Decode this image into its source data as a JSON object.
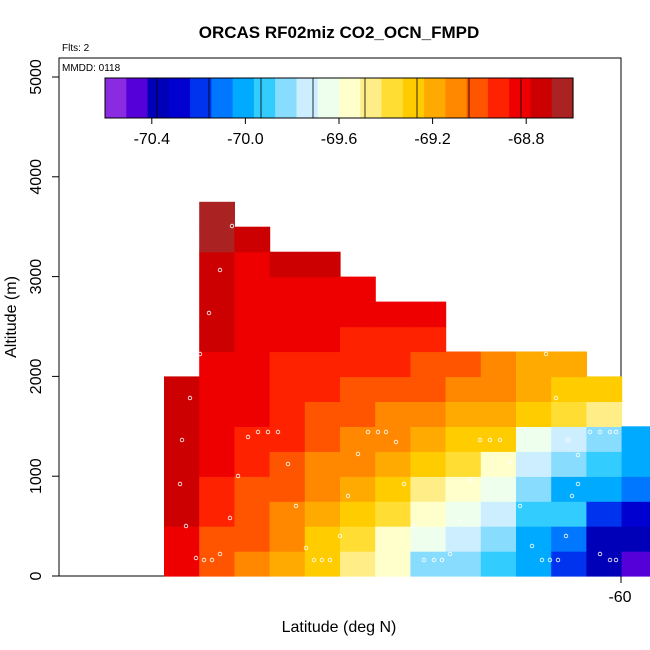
{
  "chart_data": {
    "type": "heatmap",
    "title": "ORCAS RF02miz CO2_OCN_FMPD",
    "annotations": {
      "flights": "Flts: 2",
      "date": "MMDD: 0118"
    },
    "xlabel": "Latitude (deg N)",
    "ylabel": "Altitude (m)",
    "x_ticks": [
      "-60"
    ],
    "y_ticks": [
      "0",
      "1000",
      "2000",
      "3000",
      "4000",
      "5000"
    ],
    "ylim": [
      0,
      5200
    ],
    "colorbar": {
      "range": [
        -70.6,
        -68.6
      ],
      "tick_values": [
        -70.4,
        -70.0,
        -69.6,
        -69.2,
        -68.8
      ],
      "tick_labels": [
        "-70.4",
        "-70.0",
        "-69.6",
        "-69.2",
        "-68.8"
      ],
      "colors": [
        "#8a2be2",
        "#5500d8",
        "#0000b8",
        "#0000d0",
        "#0033ee",
        "#0077ff",
        "#00aaff",
        "#33ccff",
        "#88ddff",
        "#cceeff",
        "#eeffee",
        "#ffffcc",
        "#ffee88",
        "#ffdd33",
        "#ffcc00",
        "#ffaa00",
        "#ff8800",
        "#ff5500",
        "#ff2200",
        "#ee0000",
        "#cc0000",
        "#aa2222"
      ]
    },
    "columns": [
      {
        "col": 0,
        "values": [
          -68.75,
          -68.75,
          -68.72,
          -68.72,
          -68.72,
          -68.7,
          -68.72,
          -68.72
        ],
        "y_start": 0
      },
      {
        "col": 1,
        "values": [
          -68.98,
          -68.95,
          -68.92,
          -68.85,
          -68.8,
          -68.75,
          -68.75,
          -68.75,
          -68.75,
          -68.72,
          -68.72,
          -68.7,
          -68.68,
          -68.64,
          -68.62
        ],
        "y_start": 0
      },
      {
        "col": 2,
        "values": [
          -69.08,
          -69.0,
          -69.0,
          -68.95,
          -68.9,
          -68.85,
          -68.82,
          -68.82,
          -68.82,
          -68.8,
          -68.78,
          -68.75,
          -68.75,
          -68.7
        ],
        "y_start": 0
      },
      {
        "col": 3,
        "values": [
          -69.14,
          -69.1,
          -69.08,
          -69.02,
          -68.95,
          -68.92,
          -68.9,
          -68.88,
          -68.85,
          -68.82,
          -68.8,
          -68.75,
          -68.72
        ],
        "y_start": 0
      },
      {
        "col": 4,
        "values": [
          -69.24,
          -69.22,
          -69.18,
          -69.12,
          -69.05,
          -69.0,
          -68.95,
          -68.9,
          -68.86,
          -68.82,
          -68.78,
          -68.75,
          -68.72
        ],
        "y_start": 0
      },
      {
        "col": 5,
        "values": [
          -69.42,
          -69.35,
          -69.28,
          -69.2,
          -69.05,
          -69.05,
          -69.0,
          -68.95,
          -68.9,
          -68.85,
          -68.8,
          -68.78
        ],
        "y_start": 0
      },
      {
        "col": 6,
        "values": [
          -69.55,
          -69.52,
          -69.38,
          -69.3,
          -69.2,
          -69.12,
          -69.05,
          -68.98,
          -68.92,
          -68.85,
          -68.8
        ],
        "y_start": 0
      },
      {
        "col": 7,
        "values": [
          -69.8,
          -69.68,
          -69.58,
          -69.48,
          -69.3,
          -69.2,
          -69.1,
          -69.02,
          -68.95,
          -68.88,
          -68.82
        ],
        "y_start": 0
      },
      {
        "col": 8,
        "values": [
          -69.82,
          -69.75,
          -69.62,
          -69.55,
          -69.35,
          -69.25,
          -69.15,
          -69.08,
          -69.0
        ],
        "y_start": 0
      },
      {
        "col": 9,
        "values": [
          -69.95,
          -69.85,
          -69.72,
          -69.62,
          -69.52,
          -69.3,
          -69.2,
          -69.1,
          -69.05
        ],
        "y_start": 0
      },
      {
        "col": 10,
        "values": [
          -70.05,
          -70.05,
          -69.95,
          -69.88,
          -69.78,
          -69.65,
          -69.3,
          -69.2,
          -69.15
        ],
        "y_start": 0
      },
      {
        "col": 11,
        "values": [
          -70.22,
          -70.1,
          -69.95,
          -70.0,
          -69.85,
          -69.75,
          -69.4,
          -69.25,
          -69.18
        ],
        "y_start": 0
      },
      {
        "col": 12,
        "values": [
          -70.42,
          -70.42,
          -70.18,
          -70.02,
          -69.95,
          -69.8,
          -69.5,
          -69.3
        ],
        "y_start": 0
      },
      {
        "col": 13,
        "values": [
          -70.55,
          -70.38,
          -70.3,
          -70.12,
          -70.02,
          -70.0
        ],
        "y_start": 0
      }
    ],
    "grid": "off",
    "legend": "top"
  }
}
